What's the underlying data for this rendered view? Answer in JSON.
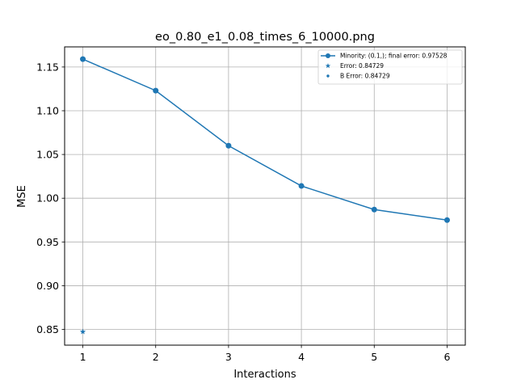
{
  "chart_data": {
    "type": "line",
    "title": "eo_0.80_e1_0.08_times_6_10000.png",
    "xlabel": "Interactions",
    "ylabel": "MSE",
    "xlim": [
      0.75,
      6.25
    ],
    "ylim": [
      0.832,
      1.173
    ],
    "xticks": [
      1,
      2,
      3,
      4,
      5,
      6
    ],
    "yticks": [
      0.85,
      0.9,
      0.95,
      1.0,
      1.05,
      1.1,
      1.15
    ],
    "ytick_labels": [
      "0.85",
      "0.90",
      "0.95",
      "1.00",
      "1.05",
      "1.10",
      "1.15"
    ],
    "grid": true,
    "legend_position": "top-right",
    "series": [
      {
        "name": "Minority: (0.1,); final error: 0.97528",
        "marker": "circle",
        "line": true,
        "color": "#1f77b4",
        "x": [
          1,
          2,
          3,
          4,
          5,
          6
        ],
        "y": [
          1.159,
          1.123,
          1.06,
          1.014,
          0.987,
          0.975
        ]
      },
      {
        "name": "Error: 0.84729",
        "marker": "star",
        "line": false,
        "color": "#1f77b4",
        "x": [
          1
        ],
        "y": [
          0.84729
        ]
      },
      {
        "name": "B Error: 0.84729",
        "marker": "dot",
        "line": false,
        "color": "#1f77b4",
        "x": [],
        "y": []
      }
    ]
  }
}
